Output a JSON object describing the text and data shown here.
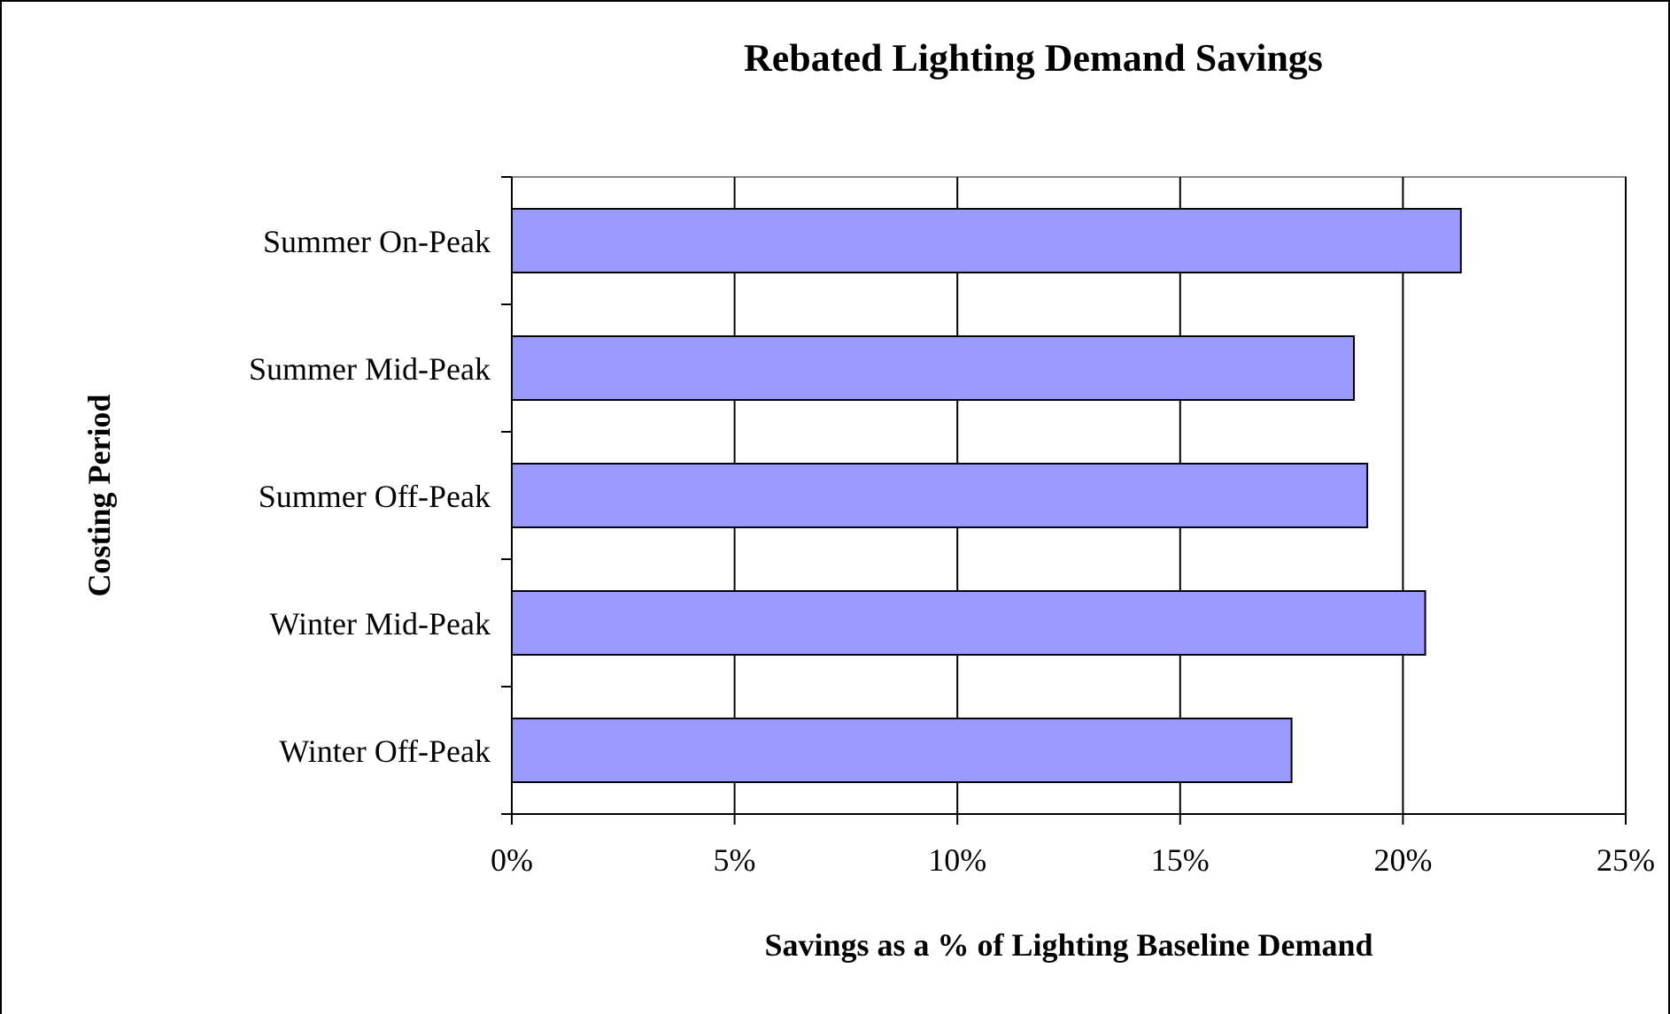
{
  "chart_data": {
    "type": "bar",
    "orientation": "horizontal",
    "title": "Rebated Lighting Demand Savings",
    "xlabel": "Savings as a % of Lighting Baseline Demand",
    "ylabel": "Costing Period",
    "categories": [
      "Summer On-Peak",
      "Summer Mid-Peak",
      "Summer Off-Peak",
      "Winter Mid-Peak",
      "Winter Off-Peak"
    ],
    "values": [
      21.3,
      18.9,
      19.2,
      20.5,
      17.5
    ],
    "color": "#9999ff",
    "xlim": [
      0,
      25
    ],
    "xticks": [
      {
        "value": 0,
        "label": "0%"
      },
      {
        "value": 5,
        "label": "5%"
      },
      {
        "value": 10,
        "label": "10%"
      },
      {
        "value": 15,
        "label": "15%"
      },
      {
        "value": 20,
        "label": "20%"
      },
      {
        "value": 25,
        "label": "25%"
      }
    ],
    "grid": "x"
  }
}
